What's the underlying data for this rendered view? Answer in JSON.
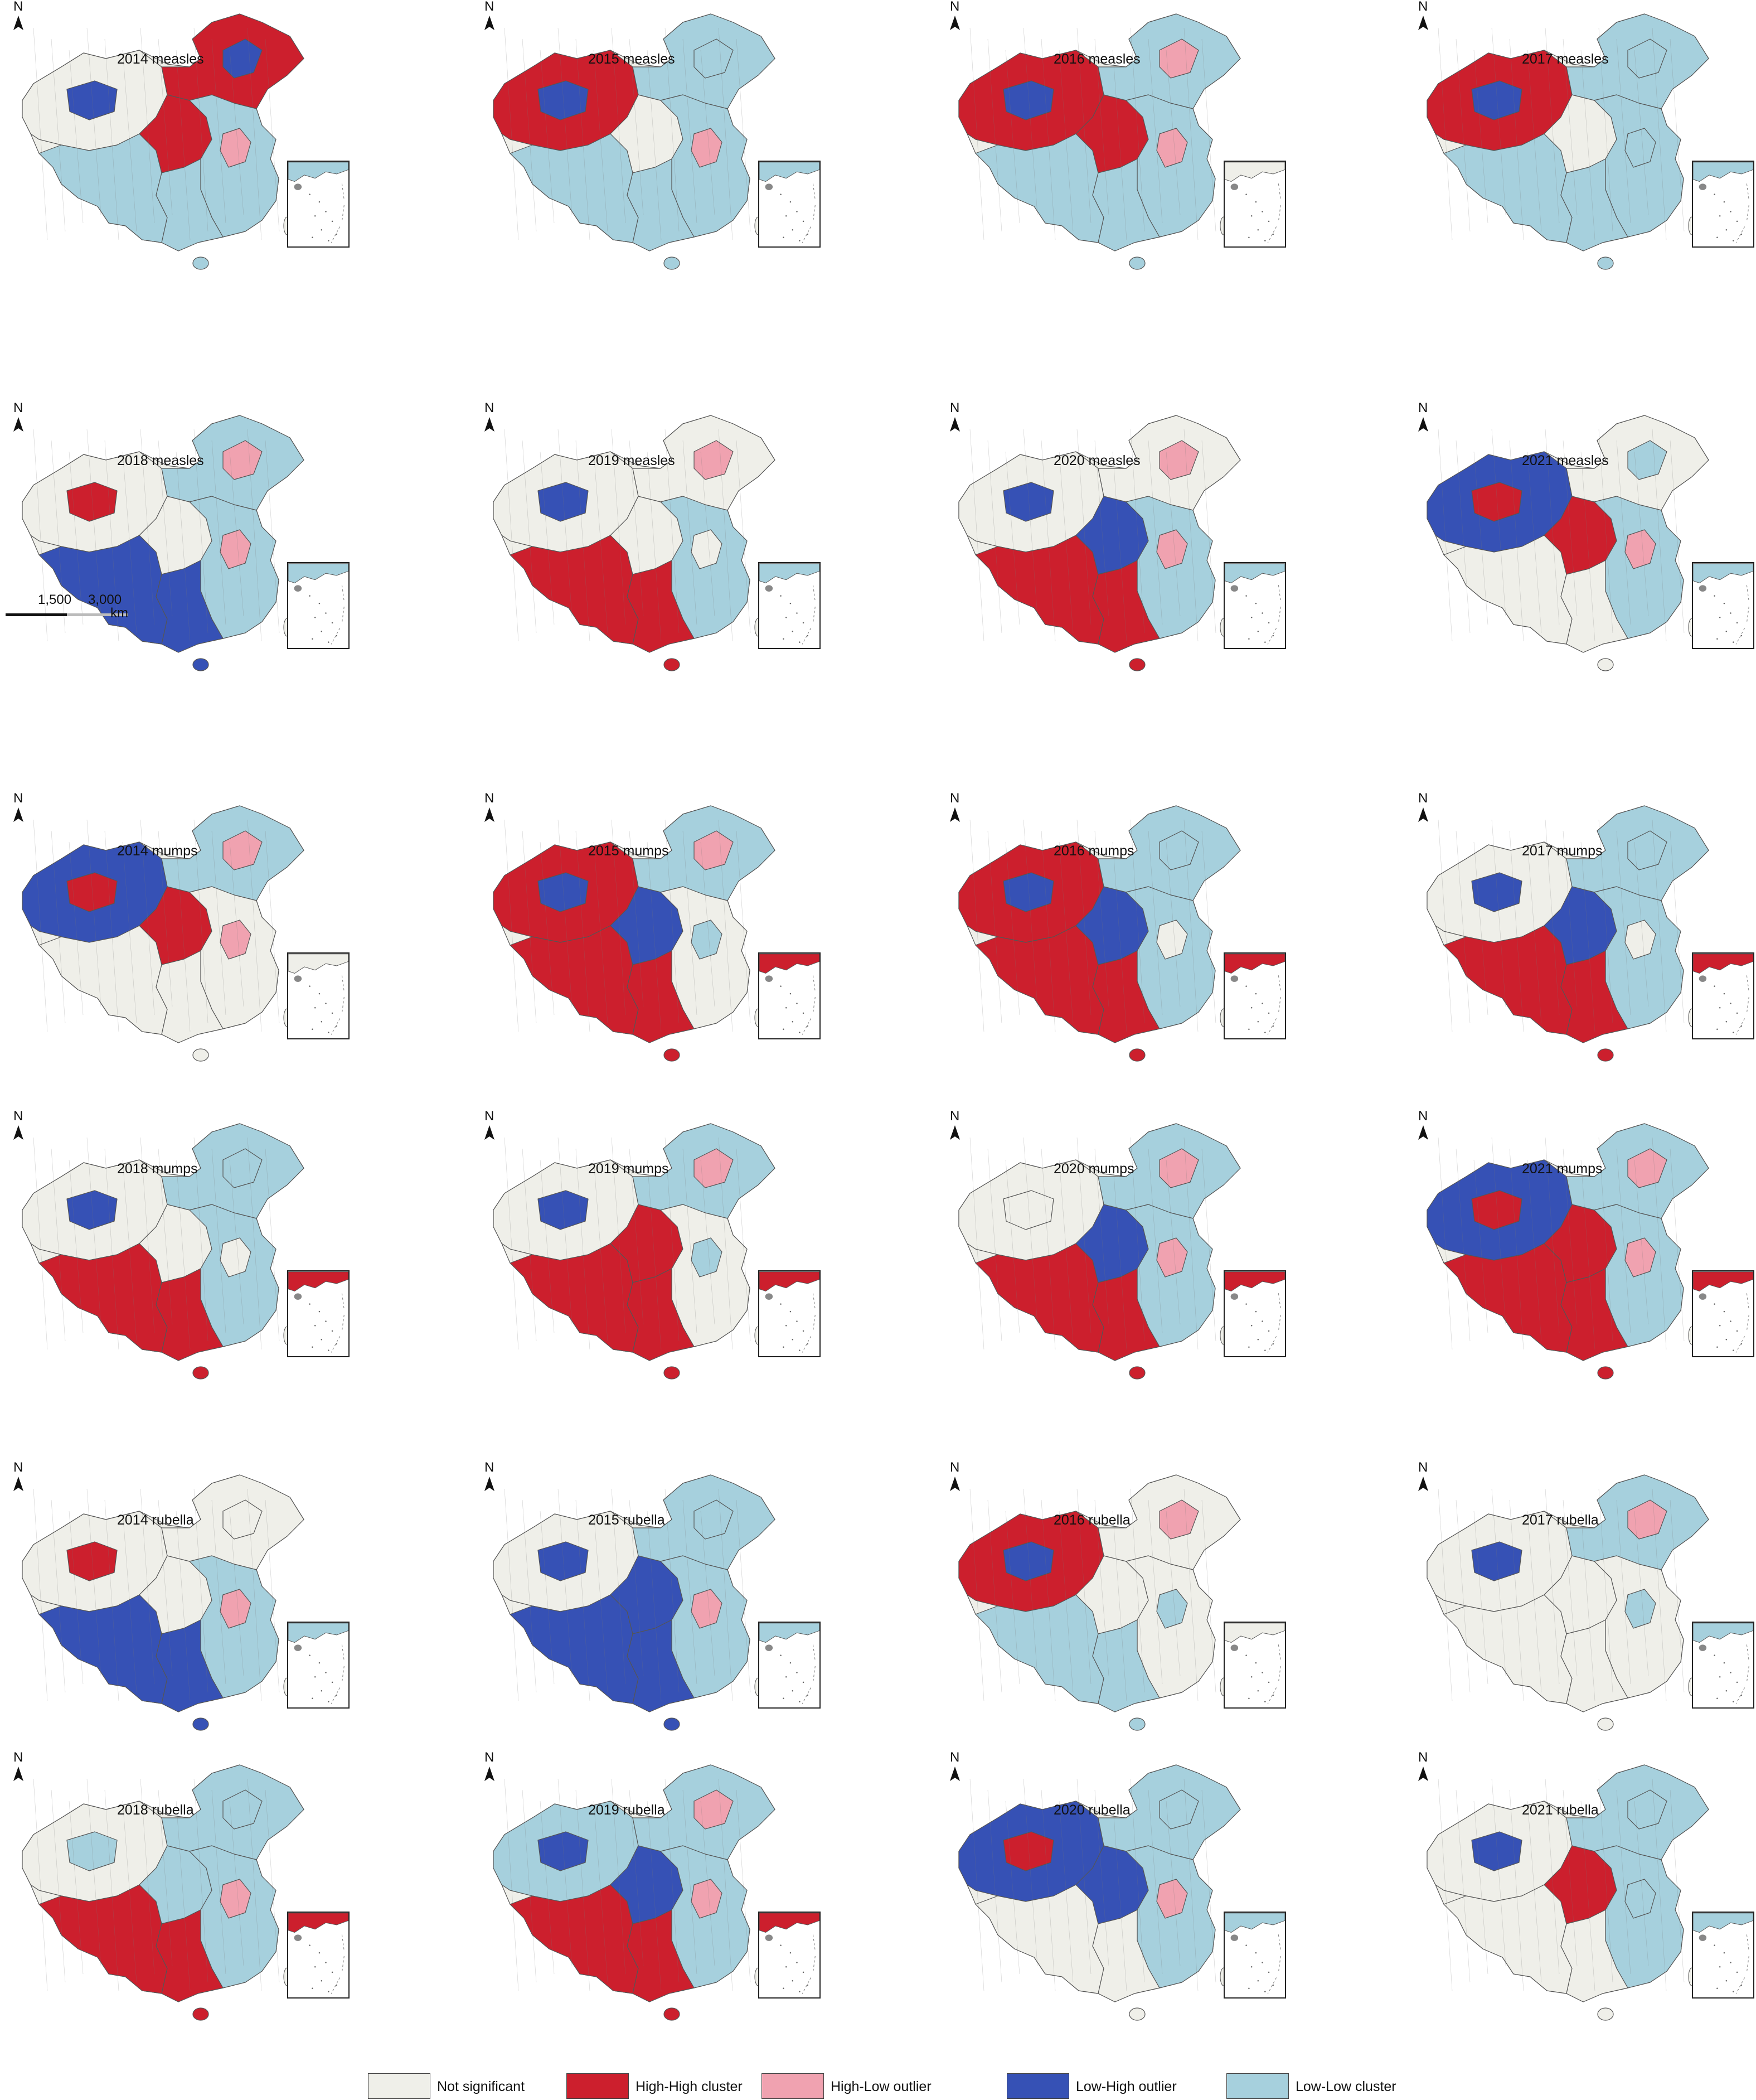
{
  "colors": {
    "not_significant": "#efefe9",
    "high_high": "#cc1f2d",
    "high_low": "#f0a2b0",
    "low_high": "#3651b5",
    "low_low": "#a6d0dd",
    "border": "#555555"
  },
  "north_arrow_label": "N",
  "scale_bar": {
    "labels": [
      "1,500",
      "3,000"
    ],
    "unit": "km"
  },
  "panels": [
    {
      "title": "2014 measles",
      "disease": "measles",
      "year": 2014,
      "west": "not_significant",
      "west_accent": "low_high",
      "east": "low_low",
      "east_accent": "high_low",
      "northeast": "high_high",
      "ne_accent": "low_high",
      "south": "low_low",
      "center": "high_high",
      "inset": "low_low"
    },
    {
      "title": "2015 measles",
      "disease": "measles",
      "year": 2015,
      "west": "high_high",
      "west_accent": "low_high",
      "east": "low_low",
      "east_accent": "high_low",
      "northeast": "low_low",
      "ne_accent": "low_low",
      "south": "low_low",
      "center": "not_significant",
      "inset": "low_low"
    },
    {
      "title": "2016 measles",
      "disease": "measles",
      "year": 2016,
      "west": "high_high",
      "west_accent": "low_high",
      "east": "low_low",
      "east_accent": "high_low",
      "northeast": "low_low",
      "ne_accent": "high_low",
      "south": "low_low",
      "center": "high_high",
      "inset": "not_significant"
    },
    {
      "title": "2017 measles",
      "disease": "measles",
      "year": 2017,
      "west": "high_high",
      "west_accent": "low_high",
      "east": "low_low",
      "east_accent": "low_low",
      "northeast": "low_low",
      "ne_accent": "low_low",
      "south": "low_low",
      "center": "not_significant",
      "inset": "low_low"
    },
    {
      "title": "2018 measles",
      "disease": "measles",
      "year": 2018,
      "west": "not_significant",
      "west_accent": "high_high",
      "east": "low_low",
      "east_accent": "high_low",
      "northeast": "low_low",
      "ne_accent": "high_low",
      "south": "low_high",
      "center": "not_significant",
      "inset": "low_low"
    },
    {
      "title": "2019 measles",
      "disease": "measles",
      "year": 2019,
      "west": "not_significant",
      "west_accent": "low_high",
      "east": "low_low",
      "east_accent": "not_significant",
      "northeast": "not_significant",
      "ne_accent": "high_low",
      "south": "high_high",
      "center": "not_significant",
      "inset": "low_low"
    },
    {
      "title": "2020 measles",
      "disease": "measles",
      "year": 2020,
      "west": "not_significant",
      "west_accent": "low_high",
      "east": "low_low",
      "east_accent": "high_low",
      "northeast": "not_significant",
      "ne_accent": "high_low",
      "south": "high_high",
      "center": "low_high",
      "inset": "low_low"
    },
    {
      "title": "2021 measles",
      "disease": "measles",
      "year": 2021,
      "west": "low_high",
      "west_accent": "high_high",
      "east": "low_low",
      "east_accent": "high_low",
      "northeast": "not_significant",
      "ne_accent": "low_low",
      "south": "not_significant",
      "center": "high_high",
      "inset": "low_low"
    },
    {
      "title": "2014 mumps",
      "disease": "mumps",
      "year": 2014,
      "west": "low_high",
      "west_accent": "high_high",
      "east": "not_significant",
      "east_accent": "high_low",
      "northeast": "low_low",
      "ne_accent": "high_low",
      "south": "not_significant",
      "center": "high_high",
      "inset": "not_significant"
    },
    {
      "title": "2015 mumps",
      "disease": "mumps",
      "year": 2015,
      "west": "high_high",
      "west_accent": "low_high",
      "east": "not_significant",
      "east_accent": "low_low",
      "northeast": "low_low",
      "ne_accent": "high_low",
      "south": "high_high",
      "center": "low_high",
      "inset": "high_high"
    },
    {
      "title": "2016 mumps",
      "disease": "mumps",
      "year": 2016,
      "west": "high_high",
      "west_accent": "low_high",
      "east": "low_low",
      "east_accent": "not_significant",
      "northeast": "low_low",
      "ne_accent": "low_low",
      "south": "high_high",
      "center": "low_high",
      "inset": "high_high"
    },
    {
      "title": "2017 mumps",
      "disease": "mumps",
      "year": 2017,
      "west": "not_significant",
      "west_accent": "low_high",
      "east": "low_low",
      "east_accent": "not_significant",
      "northeast": "low_low",
      "ne_accent": "low_low",
      "south": "high_high",
      "center": "low_high",
      "inset": "high_high"
    },
    {
      "title": "2018 mumps",
      "disease": "mumps",
      "year": 2018,
      "west": "not_significant",
      "west_accent": "low_high",
      "east": "low_low",
      "east_accent": "not_significant",
      "northeast": "low_low",
      "ne_accent": "low_low",
      "south": "high_high",
      "center": "not_significant",
      "inset": "high_high"
    },
    {
      "title": "2019 mumps",
      "disease": "mumps",
      "year": 2019,
      "west": "not_significant",
      "west_accent": "low_high",
      "east": "not_significant",
      "east_accent": "low_low",
      "northeast": "low_low",
      "ne_accent": "high_low",
      "south": "high_high",
      "center": "high_high",
      "inset": "high_high"
    },
    {
      "title": "2020 mumps",
      "disease": "mumps",
      "year": 2020,
      "west": "not_significant",
      "west_accent": "not_significant",
      "east": "low_low",
      "east_accent": "high_low",
      "northeast": "low_low",
      "ne_accent": "high_low",
      "south": "high_high",
      "center": "low_high",
      "inset": "high_high"
    },
    {
      "title": "2021 mumps",
      "disease": "mumps",
      "year": 2021,
      "west": "low_high",
      "west_accent": "high_high",
      "east": "low_low",
      "east_accent": "high_low",
      "northeast": "low_low",
      "ne_accent": "high_low",
      "south": "high_high",
      "center": "high_high",
      "inset": "high_high"
    },
    {
      "title": "2014 rubella",
      "disease": "rubella",
      "year": 2014,
      "west": "not_significant",
      "west_accent": "high_high",
      "east": "low_low",
      "east_accent": "high_low",
      "northeast": "not_significant",
      "ne_accent": "not_significant",
      "south": "low_high",
      "center": "not_significant",
      "inset": "low_low"
    },
    {
      "title": "2015 rubella",
      "disease": "rubella",
      "year": 2015,
      "west": "not_significant",
      "west_accent": "low_high",
      "east": "low_low",
      "east_accent": "high_low",
      "northeast": "low_low",
      "ne_accent": "low_low",
      "south": "low_high",
      "center": "low_high",
      "inset": "low_low"
    },
    {
      "title": "2016 rubella",
      "disease": "rubella",
      "year": 2016,
      "west": "high_high",
      "west_accent": "low_high",
      "east": "not_significant",
      "east_accent": "low_low",
      "northeast": "not_significant",
      "ne_accent": "high_low",
      "south": "low_low",
      "center": "not_significant",
      "inset": "not_significant"
    },
    {
      "title": "2017 rubella",
      "disease": "rubella",
      "year": 2017,
      "west": "not_significant",
      "west_accent": "low_high",
      "east": "not_significant",
      "east_accent": "low_low",
      "northeast": "low_low",
      "ne_accent": "high_low",
      "south": "not_significant",
      "center": "not_significant",
      "inset": "low_low"
    },
    {
      "title": "2018 rubella",
      "disease": "rubella",
      "year": 2018,
      "west": "not_significant",
      "west_accent": "low_low",
      "east": "low_low",
      "east_accent": "high_low",
      "northeast": "low_low",
      "ne_accent": "low_low",
      "south": "high_high",
      "center": "low_low",
      "inset": "high_high"
    },
    {
      "title": "2019 rubella",
      "disease": "rubella",
      "year": 2019,
      "west": "low_low",
      "west_accent": "low_high",
      "east": "low_low",
      "east_accent": "high_low",
      "northeast": "low_low",
      "ne_accent": "high_low",
      "south": "high_high",
      "center": "low_high",
      "inset": "high_high"
    },
    {
      "title": "2020 rubella",
      "disease": "rubella",
      "year": 2020,
      "west": "low_high",
      "west_accent": "high_high",
      "east": "low_low",
      "east_accent": "high_low",
      "northeast": "low_low",
      "ne_accent": "low_low",
      "south": "not_significant",
      "center": "low_high",
      "inset": "low_low"
    },
    {
      "title": "2021 rubella",
      "disease": "rubella",
      "year": 2021,
      "west": "not_significant",
      "west_accent": "low_high",
      "east": "low_low",
      "east_accent": "low_low",
      "northeast": "low_low",
      "ne_accent": "low_low",
      "south": "not_significant",
      "center": "high_high",
      "inset": "low_low"
    }
  ],
  "legend": [
    {
      "label": "Not significant",
      "color_key": "not_significant"
    },
    {
      "label": "High-High cluster",
      "color_key": "high_high"
    },
    {
      "label": "High-Low outlier",
      "color_key": "high_low"
    },
    {
      "label": "Low-High outlier",
      "color_key": "low_high"
    },
    {
      "label": "Low-Low cluster",
      "color_key": "low_low"
    }
  ]
}
